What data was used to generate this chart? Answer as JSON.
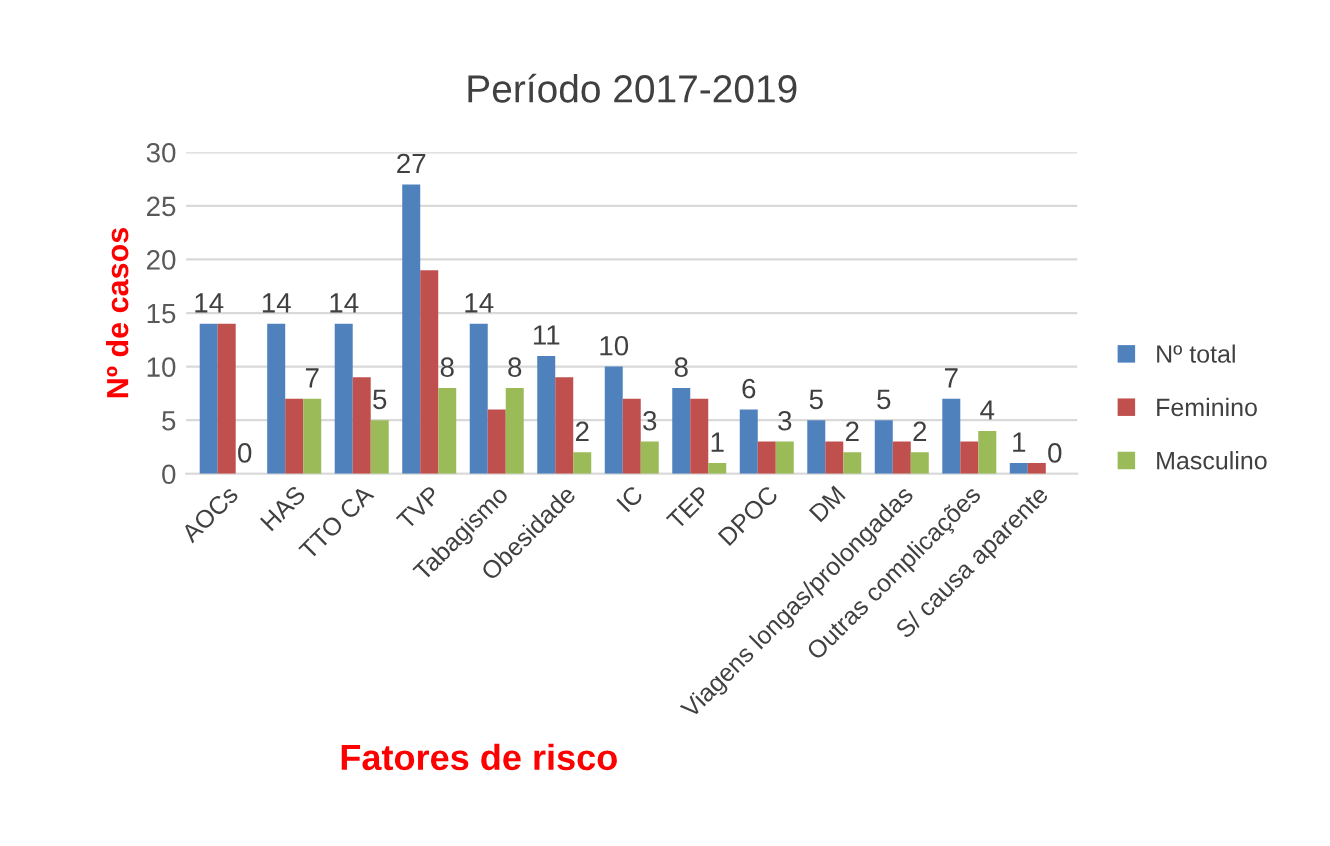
{
  "chart_data": {
    "type": "bar",
    "title": "Período 2017-2019",
    "xlabel": "Fatores de risco",
    "ylabel": "Nº de casos",
    "categories": [
      "AOCs",
      "HAS",
      "TTO CA",
      "TVP",
      "Tabagismo",
      "Obesidade",
      "IC",
      "TEP",
      "DPOC",
      "DM",
      "Viagens longas/prolongadas",
      "Outras complicações",
      "S/ causa aparente"
    ],
    "series": [
      {
        "name": "Nº total",
        "color": "#4f81bd",
        "values": [
          14,
          14,
          14,
          27,
          14,
          11,
          10,
          8,
          6,
          5,
          5,
          7,
          1
        ],
        "value_labels": [
          "14",
          "14",
          "14",
          "27",
          "14",
          "11",
          "10",
          "8",
          "6",
          "5",
          "5",
          "7",
          "1"
        ]
      },
      {
        "name": "Feminino",
        "color": "#c0504d",
        "values": [
          14,
          7,
          9,
          19,
          6,
          9,
          7,
          7,
          3,
          3,
          3,
          3,
          1
        ]
      },
      {
        "name": "Masculino",
        "color": "#9bbb59",
        "values": [
          0,
          7,
          5,
          8,
          8,
          2,
          3,
          1,
          3,
          2,
          2,
          4,
          0
        ],
        "value_labels": [
          "0",
          "7",
          "5",
          "8",
          "8",
          "2",
          "3",
          "1",
          "3",
          "2",
          "2",
          "4",
          "0"
        ]
      }
    ],
    "ylim": [
      0,
      30
    ],
    "yticks": [
      0,
      5,
      10,
      15,
      20,
      25,
      30
    ],
    "grid": "y",
    "legend": "right"
  }
}
